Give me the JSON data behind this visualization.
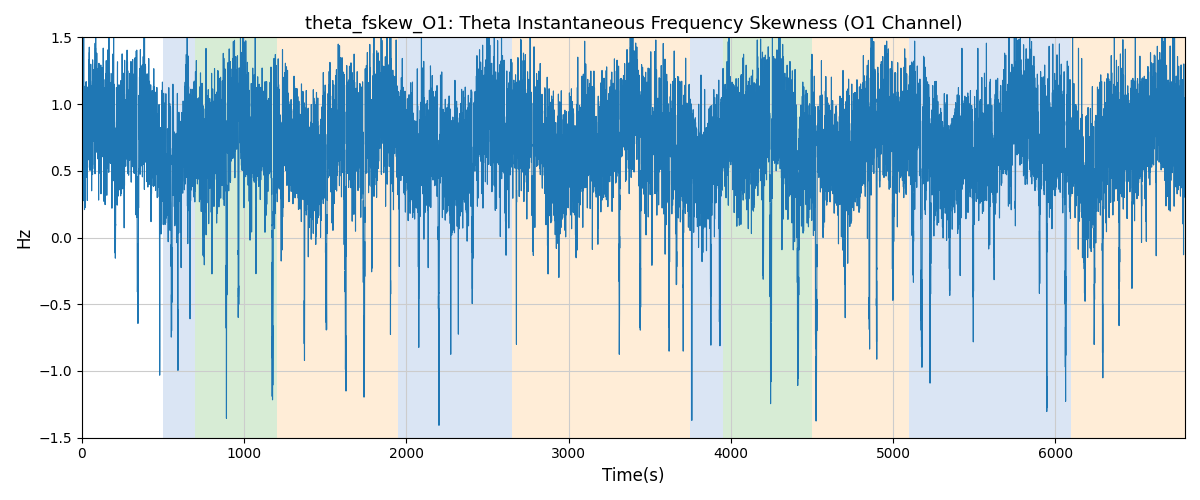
{
  "title": "theta_fskew_O1: Theta Instantaneous Frequency Skewness (O1 Channel)",
  "xlabel": "Time(s)",
  "ylabel": "Hz",
  "ylim": [
    -1.5,
    1.5
  ],
  "xlim": [
    0,
    6800
  ],
  "line_color": "#1f77b4",
  "line_width": 0.8,
  "background_color": "#ffffff",
  "grid_color": "#cccccc",
  "shaded_regions": [
    {
      "xmin": 500,
      "xmax": 700,
      "color": "#aec6e8",
      "alpha": 0.45
    },
    {
      "xmin": 700,
      "xmax": 1200,
      "color": "#a8d5a2",
      "alpha": 0.45
    },
    {
      "xmin": 1200,
      "xmax": 1950,
      "color": "#ffd8a8",
      "alpha": 0.45
    },
    {
      "xmin": 1950,
      "xmax": 2650,
      "color": "#aec6e8",
      "alpha": 0.45
    },
    {
      "xmin": 2650,
      "xmax": 3750,
      "color": "#ffd8a8",
      "alpha": 0.45
    },
    {
      "xmin": 3750,
      "xmax": 3950,
      "color": "#aec6e8",
      "alpha": 0.45
    },
    {
      "xmin": 3950,
      "xmax": 4500,
      "color": "#a8d5a2",
      "alpha": 0.45
    },
    {
      "xmin": 4500,
      "xmax": 5100,
      "color": "#ffd8a8",
      "alpha": 0.45
    },
    {
      "xmin": 5100,
      "xmax": 6100,
      "color": "#aec6e8",
      "alpha": 0.45
    },
    {
      "xmin": 6100,
      "xmax": 6800,
      "color": "#ffd8a8",
      "alpha": 0.45
    }
  ],
  "xticks": [
    0,
    1000,
    2000,
    3000,
    4000,
    5000,
    6000
  ],
  "yticks": [
    -1.5,
    -1.0,
    -0.5,
    0.0,
    0.5,
    1.0,
    1.5
  ],
  "seed": 12345,
  "n_points": 13600,
  "figsize": [
    12.0,
    5.0
  ],
  "dpi": 100
}
